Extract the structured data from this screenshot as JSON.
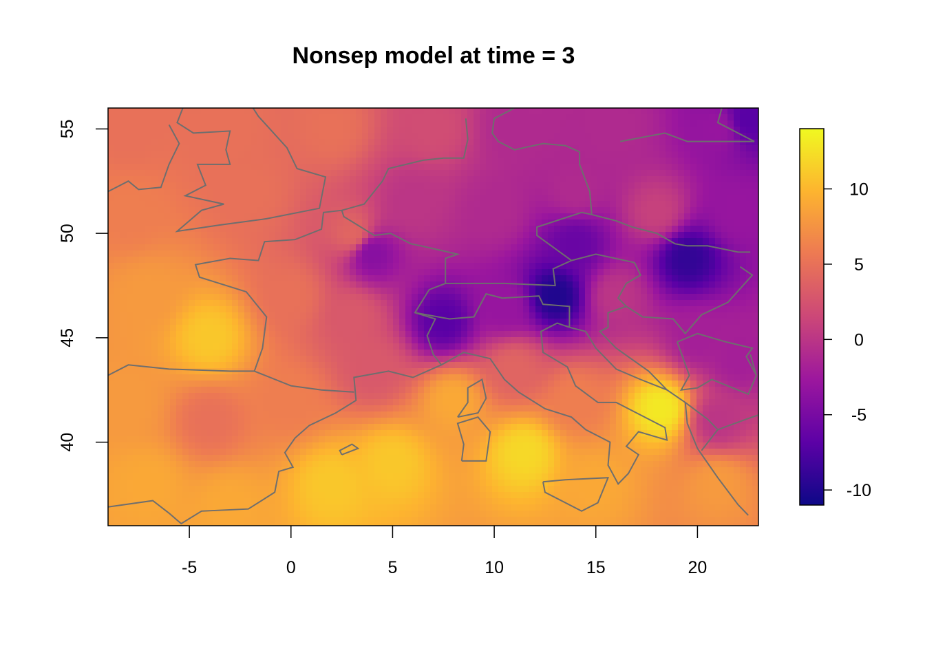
{
  "chart_data": {
    "type": "heatmap",
    "title": "Nonsep model at time = 3",
    "xlabel": "",
    "ylabel": "",
    "xlim": [
      -9,
      23
    ],
    "ylim": [
      36,
      56
    ],
    "x_ticks": [
      "-5",
      "0",
      "5",
      "10",
      "15",
      "20"
    ],
    "x_tick_values": [
      -5,
      0,
      5,
      10,
      15,
      20
    ],
    "y_ticks": [
      "40",
      "45",
      "50",
      "55"
    ],
    "y_tick_values": [
      40,
      45,
      50,
      55
    ],
    "colorbar": {
      "range": [
        -11,
        14
      ],
      "ticks": [
        "-10",
        "-5",
        "0",
        "5",
        "10"
      ],
      "tick_values": [
        -10,
        -5,
        0,
        5,
        10
      ],
      "palette": [
        "#0d0887",
        "#5c01a6",
        "#9c179e",
        "#cc4778",
        "#ed7953",
        "#fdb42f",
        "#f0f921"
      ]
    },
    "grid": false,
    "border_color": "#6e6e6e",
    "surface_anchors": [
      {
        "lon": -8,
        "lat": 55,
        "value": 5
      },
      {
        "lon": -3,
        "lat": 55,
        "value": 5
      },
      {
        "lon": 2,
        "lat": 55,
        "value": 5
      },
      {
        "lon": 7,
        "lat": 55,
        "value": 2
      },
      {
        "lon": 11,
        "lat": 55,
        "value": -1
      },
      {
        "lon": 16,
        "lat": 55,
        "value": -1
      },
      {
        "lon": 21,
        "lat": 55,
        "value": -3
      },
      {
        "lon": 22.5,
        "lat": 55.5,
        "value": -7
      },
      {
        "lon": -8,
        "lat": 51,
        "value": 6
      },
      {
        "lon": -2,
        "lat": 52,
        "value": 5
      },
      {
        "lon": 3,
        "lat": 50,
        "value": 4
      },
      {
        "lon": 6,
        "lat": 51.5,
        "value": 0
      },
      {
        "lon": 10,
        "lat": 51,
        "value": -1
      },
      {
        "lon": 14,
        "lat": 52,
        "value": -1
      },
      {
        "lon": 18,
        "lat": 51,
        "value": 1
      },
      {
        "lon": 22,
        "lat": 51,
        "value": -3
      },
      {
        "lon": 4,
        "lat": 49,
        "value": -4
      },
      {
        "lon": 14,
        "lat": 49.5,
        "value": -6
      },
      {
        "lon": 19.5,
        "lat": 48.8,
        "value": -9
      },
      {
        "lon": -7,
        "lat": 47,
        "value": 8
      },
      {
        "lon": -4,
        "lat": 45,
        "value": 11
      },
      {
        "lon": 0,
        "lat": 47,
        "value": 5
      },
      {
        "lon": 3,
        "lat": 46,
        "value": 3
      },
      {
        "lon": 7.5,
        "lat": 45.8,
        "value": -7
      },
      {
        "lon": 10.5,
        "lat": 46.5,
        "value": -3
      },
      {
        "lon": 13,
        "lat": 47,
        "value": -10
      },
      {
        "lon": 16,
        "lat": 47,
        "value": 0
      },
      {
        "lon": 20,
        "lat": 45,
        "value": -2
      },
      {
        "lon": 22,
        "lat": 44,
        "value": -2
      },
      {
        "lon": -8,
        "lat": 42,
        "value": 8
      },
      {
        "lon": -4,
        "lat": 41,
        "value": 5
      },
      {
        "lon": 0,
        "lat": 42,
        "value": 6
      },
      {
        "lon": 4,
        "lat": 43.5,
        "value": 3
      },
      {
        "lon": 8,
        "lat": 42,
        "value": 9
      },
      {
        "lon": 11,
        "lat": 43.5,
        "value": 4
      },
      {
        "lon": 14,
        "lat": 42,
        "value": 6
      },
      {
        "lon": 18.2,
        "lat": 41.6,
        "value": 13
      },
      {
        "lon": 21,
        "lat": 41,
        "value": 0
      },
      {
        "lon": -7,
        "lat": 38,
        "value": 9
      },
      {
        "lon": -3,
        "lat": 37,
        "value": 9
      },
      {
        "lon": 2,
        "lat": 38,
        "value": 11
      },
      {
        "lon": 5,
        "lat": 39,
        "value": 11
      },
      {
        "lon": 11.5,
        "lat": 39.5,
        "value": 12
      },
      {
        "lon": 15,
        "lat": 38,
        "value": 9
      },
      {
        "lon": 21,
        "lat": 38,
        "value": 8
      }
    ]
  }
}
